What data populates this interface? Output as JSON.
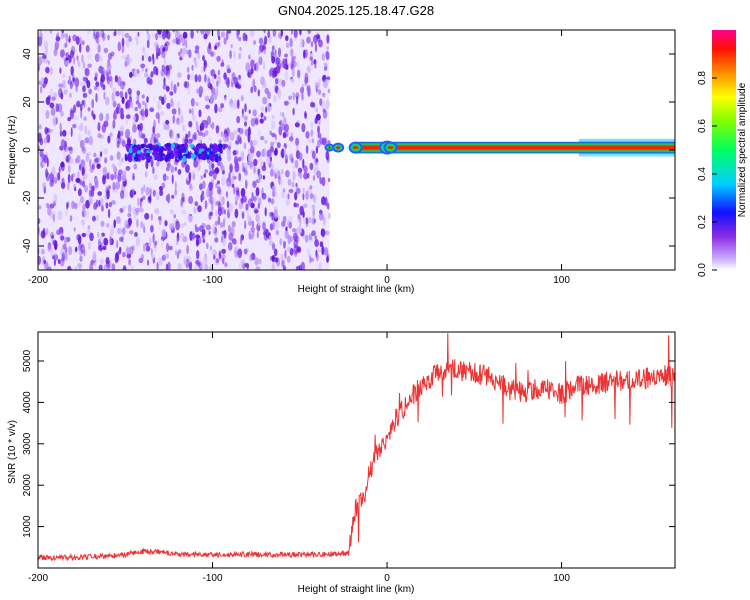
{
  "title": "GN04.2025.125.18.47.G28",
  "colors": {
    "snr_line": "#ee3333",
    "spectrogram_noise": "#7a2cf0",
    "spectrogram_signal": "#ff2200",
    "axis": "#000000"
  },
  "chart_data": [
    {
      "type": "heatmap",
      "title": "GN04.2025.125.18.47.G28",
      "xlabel": "Height of straight line (km)",
      "ylabel": "Frequency (Hz)",
      "xlim": [
        -200,
        165
      ],
      "ylim": [
        -50,
        50
      ],
      "x_ticks": [
        -200,
        -100,
        0,
        100
      ],
      "y_ticks": [
        -40,
        -20,
        0,
        20,
        40
      ],
      "x_tick_labels": [
        "-200",
        "-100",
        "0",
        "100"
      ],
      "y_tick_labels": [
        "-40",
        "-20",
        "0",
        "20",
        "40"
      ],
      "grid": false,
      "colormap": "rainbow",
      "colorbar": {
        "label": "Normalized spectral amplitude",
        "range": [
          0,
          1
        ],
        "ticks": [
          0.0,
          0.2,
          0.4,
          0.6,
          0.8
        ],
        "tick_labels": [
          "0.0",
          "0.2",
          "0.4",
          "0.6",
          "0.8"
        ]
      },
      "regions": [
        {
          "x": [
            -200,
            -33
          ],
          "freq": [
            -50,
            50
          ],
          "amplitude": 0.15,
          "description": "noise"
        },
        {
          "x": [
            -150,
            -95
          ],
          "freq": [
            -4,
            2
          ],
          "amplitude": 0.25
        },
        {
          "x": [
            -33,
            165
          ],
          "freq": [
            -1,
            3
          ],
          "amplitude": 0.9
        }
      ]
    },
    {
      "type": "line",
      "xlabel": "Height of straight line (km)",
      "ylabel": "SNR (10 * v/v)",
      "xlim": [
        -200,
        165
      ],
      "ylim": [
        0,
        5700
      ],
      "x_ticks": [
        -200,
        -100,
        0,
        100
      ],
      "y_ticks": [
        1000,
        2000,
        3000,
        4000,
        5000
      ],
      "x_tick_labels": [
        "-200",
        "-100",
        "0",
        "100"
      ],
      "y_tick_labels": [
        "1000",
        "2000",
        "3000",
        "4000",
        "5000"
      ],
      "grid": false,
      "series": [
        {
          "x": [
            -200,
            -180,
            -160,
            -150,
            -140,
            -130,
            -120,
            -100,
            -80,
            -60,
            -40,
            -22,
            -20,
            -18,
            -15,
            -12,
            -10,
            -5,
            0,
            5,
            10,
            15,
            20,
            25,
            30,
            40,
            50,
            60,
            70,
            80,
            90,
            100,
            110,
            120,
            130,
            140,
            150,
            160,
            165
          ],
          "y": [
            250,
            260,
            280,
            320,
            400,
            380,
            330,
            320,
            330,
            320,
            330,
            350,
            900,
            1400,
            1700,
            1900,
            2300,
            2800,
            3200,
            3600,
            3900,
            4200,
            4400,
            4600,
            4700,
            4800,
            4700,
            4600,
            4300,
            4250,
            4350,
            4200,
            4400,
            4450,
            4500,
            4550,
            4600,
            4650,
            4600
          ]
        }
      ]
    }
  ]
}
